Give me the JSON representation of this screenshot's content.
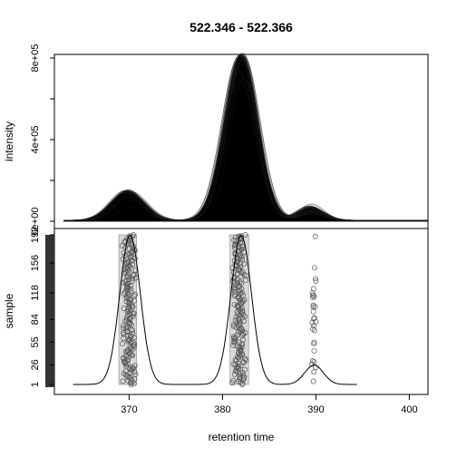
{
  "chart_data": [
    {
      "type": "area",
      "panel": "top",
      "title": "522.346 - 522.366",
      "ylabel": "intensity",
      "xlim": [
        362,
        402
      ],
      "ylim": [
        0,
        870000
      ],
      "y_ticks": [
        {
          "value": 0,
          "label": "0e+00"
        },
        {
          "value": 400000,
          "label": "4e+05"
        },
        {
          "value": 800000,
          "label": "8e+05"
        }
      ],
      "y_minor_ticks": [
        200000,
        600000
      ],
      "grid": false,
      "sample_count": 192,
      "series_description_values": {
        "peaks": [
          {
            "rt": 369.9,
            "max_intensity": 150000,
            "min_intensity": 60000
          },
          {
            "rt": 382.0,
            "max_intensity": 820000,
            "min_intensity": 660000
          },
          {
            "rt": 389.5,
            "max_intensity": 80000,
            "min_intensity": 20000
          }
        ],
        "baseline": 5000
      }
    },
    {
      "type": "scatter",
      "panel": "bottom",
      "xlabel": "retention time",
      "ylabel": "sample",
      "xlim": [
        362,
        402
      ],
      "ylim": [
        1,
        192
      ],
      "x_ticks": [
        370,
        380,
        390,
        400
      ],
      "y_ticks": [
        {
          "value": 1,
          "label": "1"
        },
        {
          "value": 26,
          "label": "26"
        },
        {
          "value": 55,
          "label": "55"
        },
        {
          "value": 84,
          "label": "84"
        },
        {
          "value": 118,
          "label": "118"
        },
        {
          "value": 156,
          "label": "156"
        },
        {
          "value": 192,
          "label": "192"
        }
      ],
      "peak_regions": [
        {
          "x_min": 368.9,
          "x_max": 370.8
        },
        {
          "x_min": 380.8,
          "x_max": 382.8
        }
      ],
      "density_curve": {
        "x_range": [
          364,
          394.5
        ],
        "components": [
          {
            "center": 370.1,
            "sd": 1.1,
            "height": 1.0
          },
          {
            "center": 382.0,
            "sd": 1.1,
            "height": 1.0
          },
          {
            "center": 389.8,
            "sd": 1.0,
            "height": 0.13
          }
        ]
      },
      "point_clusters": [
        {
          "x_center": 370.0,
          "x_spread": 0.8,
          "count": 192
        },
        {
          "x_center": 381.8,
          "x_spread": 0.8,
          "count": 192
        },
        {
          "x_center": 389.8,
          "x_spread": 0.3,
          "count": 30
        }
      ]
    }
  ]
}
